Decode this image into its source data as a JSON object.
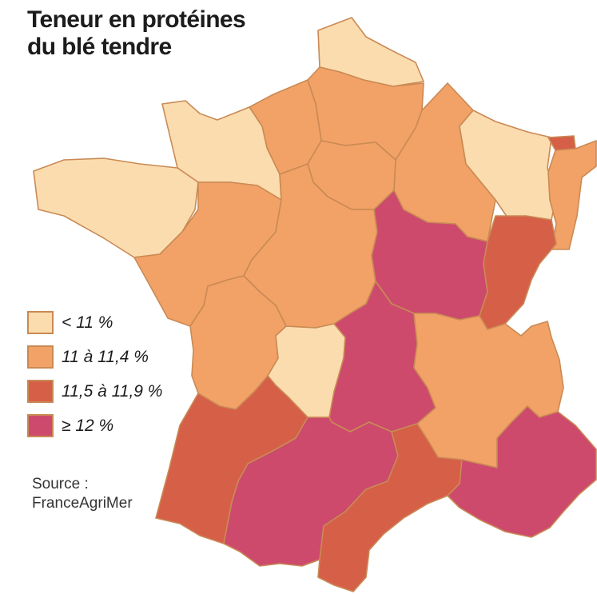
{
  "title": {
    "line1": "Teneur en protéines",
    "line2": "du blé tendre"
  },
  "legend": {
    "items": [
      {
        "label": "< 11 %",
        "color": "#fbdcae"
      },
      {
        "label": "11 à 11,4 %",
        "color": "#f2a266"
      },
      {
        "label": "11,5 à 11,9 %",
        "color": "#d65f48"
      },
      {
        "label": "≥ 12 %",
        "color": "#cd4a6c"
      }
    ]
  },
  "source": {
    "line1": "Source :",
    "line2": "FranceAgriMer"
  },
  "regions": [
    {
      "id": "nord-pas-de-calais",
      "class": 0
    },
    {
      "id": "picardie",
      "class": 1
    },
    {
      "id": "haute-normandie",
      "class": 1
    },
    {
      "id": "basse-normandie",
      "class": 0
    },
    {
      "id": "bretagne",
      "class": 0
    },
    {
      "id": "champagne-ardenne",
      "class": 1
    },
    {
      "id": "ile-de-france",
      "class": 1
    },
    {
      "id": "lorraine",
      "class": 0
    },
    {
      "id": "alsace-north",
      "class": 2
    },
    {
      "id": "alsace",
      "class": 1
    },
    {
      "id": "pays-de-la-loire",
      "class": 1
    },
    {
      "id": "centre",
      "class": 1
    },
    {
      "id": "bourgogne",
      "class": 3
    },
    {
      "id": "franche-comte",
      "class": 2
    },
    {
      "id": "poitou-charentes",
      "class": 1
    },
    {
      "id": "limousin",
      "class": 0
    },
    {
      "id": "auvergne",
      "class": 3
    },
    {
      "id": "rhone-alpes",
      "class": 1
    },
    {
      "id": "aquitaine",
      "class": 2
    },
    {
      "id": "midi-pyrenees",
      "class": 3
    },
    {
      "id": "languedoc-roussillon",
      "class": 2
    },
    {
      "id": "paca",
      "class": 3
    }
  ]
}
